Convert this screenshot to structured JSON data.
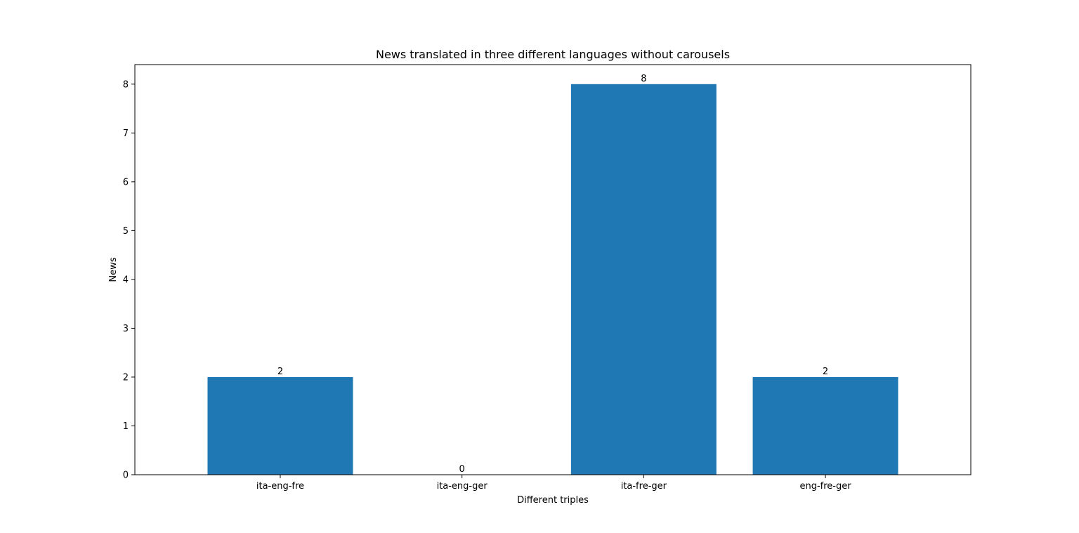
{
  "chart_data": {
    "type": "bar",
    "title": "News translated in three different languages without carousels",
    "xlabel": "Different triples",
    "ylabel": "News",
    "categories": [
      "ita-eng-fre",
      "ita-eng-ger",
      "ita-fre-ger",
      "eng-fre-ger"
    ],
    "values": [
      2,
      0,
      8,
      2
    ],
    "ylim": [
      0,
      8.4
    ],
    "yticks": [
      0,
      1,
      2,
      3,
      4,
      5,
      6,
      7,
      8
    ],
    "bar_color": "#1f77b4",
    "grid": false,
    "legend": "none"
  }
}
